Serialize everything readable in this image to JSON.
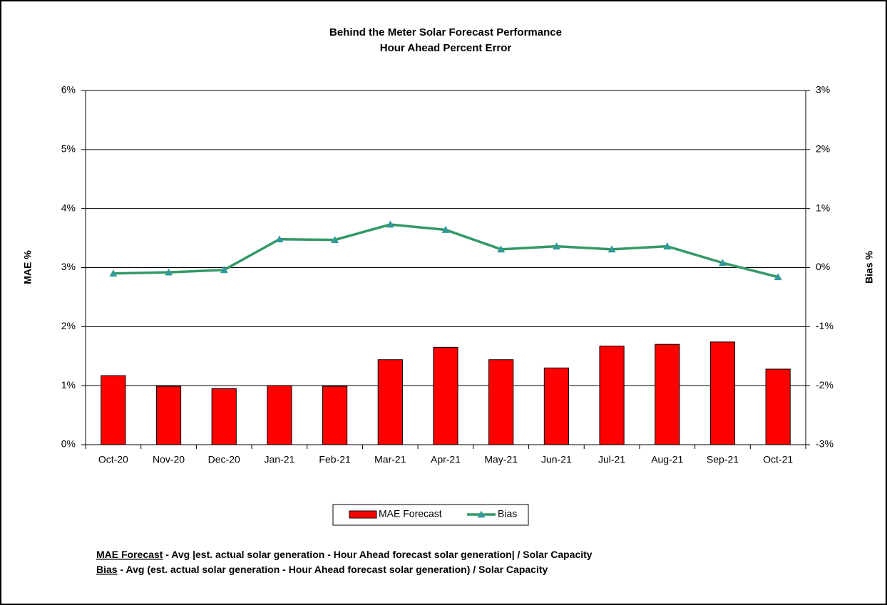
{
  "chart_data": {
    "type": "bar-line",
    "title": "Behind the Meter Solar Forecast Performance",
    "subtitle": "Hour Ahead Percent Error",
    "y_label": "MAE %",
    "y2_label": "Bias %",
    "categories": [
      "Oct-20",
      "Nov-20",
      "Dec-20",
      "Jan-21",
      "Feb-21",
      "Mar-21",
      "Apr-21",
      "May-21",
      "Jun-21",
      "Jul-21",
      "Aug-21",
      "Sep-21",
      "Oct-21"
    ],
    "series": [
      {
        "name": "MAE Forecast",
        "type": "bar",
        "color": "#ff0000",
        "values": [
          1.17,
          0.99,
          0.95,
          1.0,
          0.99,
          1.44,
          1.65,
          1.44,
          1.3,
          1.67,
          1.7,
          1.74,
          1.28
        ]
      },
      {
        "name": "Bias",
        "type": "line",
        "axis": "y2",
        "color": "#339966",
        "marker_color": "#339999",
        "values": [
          -0.1,
          -0.08,
          -0.04,
          0.48,
          0.47,
          0.73,
          0.64,
          0.31,
          0.36,
          0.31,
          0.36,
          0.08,
          -0.16
        ]
      }
    ],
    "ylim": [
      0,
      6
    ],
    "yticks": [
      {
        "value": 0,
        "label": "0%"
      },
      {
        "value": 1,
        "label": "1%"
      },
      {
        "value": 2,
        "label": "2%"
      },
      {
        "value": 3,
        "label": "3%"
      },
      {
        "value": 4,
        "label": "4%"
      },
      {
        "value": 5,
        "label": "5%"
      },
      {
        "value": 6,
        "label": "6%"
      }
    ],
    "y2lim": [
      -3,
      3
    ],
    "y2ticks": [
      {
        "value": -3,
        "label": "-3%"
      },
      {
        "value": -2,
        "label": "-2%"
      },
      {
        "value": -1,
        "label": "-1%"
      },
      {
        "value": 0,
        "label": "0%"
      },
      {
        "value": 1,
        "label": "1%"
      },
      {
        "value": 2,
        "label": "2%"
      },
      {
        "value": 3,
        "label": "3%"
      }
    ],
    "grid": true,
    "legend": "bottom",
    "footnotes": [
      {
        "term": "MAE Forecast",
        "text": " - Avg |est. actual solar generation - Hour Ahead forecast solar generation| / Solar Capacity"
      },
      {
        "term": "Bias",
        "text": " - Avg (est. actual solar generation - Hour Ahead forecast solar generation) / Solar Capacity"
      }
    ]
  }
}
